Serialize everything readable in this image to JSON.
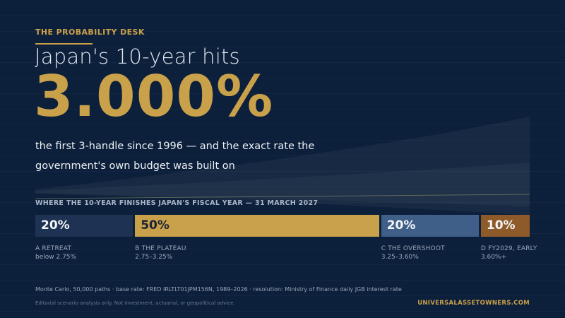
{
  "kicker": "THE PROBABILITY DESK",
  "headline": "Japan's 10-year hits",
  "big_rate": "3.000%",
  "subhead": "the first 3-handle since 1996 — and the exact rate the government's own budget was built on",
  "chart_data": {
    "type": "bar",
    "title": "WHERE THE 10-YEAR FINISHES JAPAN'S FISCAL YEAR — 31 MARCH 2027",
    "categories": [
      {
        "letter": "A",
        "name": "RETREAT",
        "range": "below 2.75%",
        "value": 20,
        "value_label": "20%",
        "color": "#1e3354",
        "text_color": "#f2f4f7"
      },
      {
        "letter": "B",
        "name": "THE PLATEAU",
        "range": "2.75–3.25%",
        "value": 50,
        "value_label": "50%",
        "color": "#c9a14a",
        "text_color": "#1b2436"
      },
      {
        "letter": "C",
        "name": "THE OVERSHOOT",
        "range": "3.25–3.60%",
        "value": 20,
        "value_label": "20%",
        "color": "#3f5f88",
        "text_color": "#f2f4f7"
      },
      {
        "letter": "D",
        "name": "FY2029, EARLY",
        "range": "3.60%+",
        "value": 10,
        "value_label": "10%",
        "color": "#8f5a2a",
        "text_color": "#f2f4f7"
      }
    ],
    "unit": "%"
  },
  "footer": {
    "source": "Monte Carlo, 50,000 paths · base rate: FRED IRLTLT01JPM156N, 1989–2026 · resolution: Ministry of Finance daily JGB interest rate",
    "disclaimer": "Editorial scenario analysis only. Not investment, actuarial, or geopolitical advice.",
    "brand": "UNIVERSALASSETOWNERS.COM"
  },
  "colors": {
    "background": "#0c1f3b",
    "accent": "#c9a14a"
  }
}
